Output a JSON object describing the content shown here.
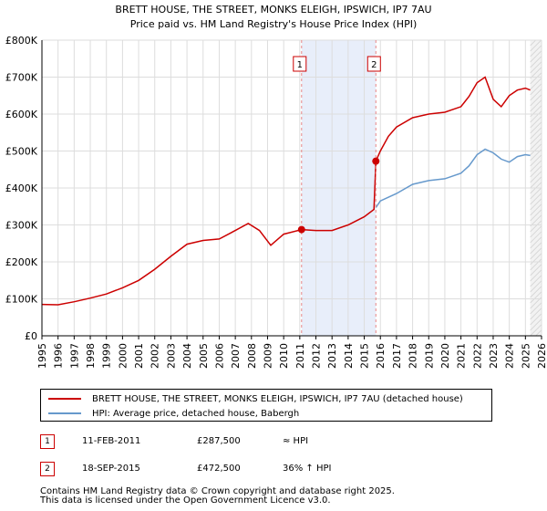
{
  "chart_data": {
    "type": "line",
    "title": "BRETT HOUSE, THE STREET, MONKS ELEIGH, IPSWICH, IP7 7AU",
    "subtitle": "Price paid vs. HM Land Registry's House Price Index (HPI)",
    "xlim": [
      1995,
      2026
    ],
    "ylim": [
      0,
      800000
    ],
    "x_ticks": [
      "1995",
      "1996",
      "1997",
      "1998",
      "1999",
      "2000",
      "2001",
      "2002",
      "2003",
      "2004",
      "2005",
      "2006",
      "2007",
      "2008",
      "2009",
      "2010",
      "2011",
      "2012",
      "2013",
      "2014",
      "2015",
      "2016",
      "2017",
      "2018",
      "2019",
      "2020",
      "2021",
      "2022",
      "2023",
      "2024",
      "2025",
      "2026"
    ],
    "y_ticks": [
      {
        "value": 0,
        "label": "£0"
      },
      {
        "value": 100000,
        "label": "£100K"
      },
      {
        "value": 200000,
        "label": "£200K"
      },
      {
        "value": 300000,
        "label": "£300K"
      },
      {
        "value": 400000,
        "label": "£400K"
      },
      {
        "value": 500000,
        "label": "£500K"
      },
      {
        "value": 600000,
        "label": "£600K"
      },
      {
        "value": 700000,
        "label": "£700K"
      },
      {
        "value": 800000,
        "label": "£800K"
      }
    ],
    "grid": true,
    "shaded_region": [
      2011.11,
      2015.72
    ],
    "series": [
      {
        "name": "BRETT HOUSE, THE STREET, MONKS ELEIGH, IPSWICH, IP7 7AU (detached house)",
        "color": "#cc0000",
        "x": [
          1995,
          1996,
          1997,
          1998,
          1999,
          2000,
          2001,
          2002,
          2003,
          2004,
          2005,
          2006,
          2007,
          2007.8,
          2008.5,
          2009.2,
          2010,
          2011.11,
          2012,
          2013,
          2014,
          2015,
          2015.6,
          2015.72,
          2016,
          2016.5,
          2017,
          2018,
          2019,
          2020,
          2021,
          2021.5,
          2022,
          2022.5,
          2023,
          2023.5,
          2024,
          2024.5,
          2025,
          2025.3
        ],
        "y": [
          85000,
          84000,
          92000,
          102000,
          113000,
          130000,
          150000,
          180000,
          215000,
          248000,
          258000,
          262000,
          285000,
          304000,
          285000,
          245000,
          275000,
          287500,
          285000,
          285000,
          300000,
          322000,
          342000,
          472500,
          500000,
          540000,
          565000,
          590000,
          600000,
          605000,
          620000,
          648000,
          685000,
          700000,
          640000,
          620000,
          650000,
          665000,
          670000,
          665000
        ]
      },
      {
        "name": "HPI: Average price, detached house, Babergh",
        "color": "#6699cc",
        "x": [
          2015.72,
          2016,
          2017,
          2018,
          2019,
          2020,
          2021,
          2021.5,
          2022,
          2022.5,
          2023,
          2023.5,
          2024,
          2024.5,
          2025,
          2025.3
        ],
        "y": [
          347000,
          365000,
          385000,
          410000,
          420000,
          425000,
          440000,
          460000,
          490000,
          505000,
          495000,
          478000,
          470000,
          485000,
          490000,
          488000
        ]
      }
    ],
    "sales": [
      {
        "id": "1",
        "date": "11-FEB-2011",
        "price": "£287,500",
        "hpi": "≈ HPI",
        "x": 2011.11,
        "y": 287500
      },
      {
        "id": "2",
        "date": "18-SEP-2015",
        "price": "£472,500",
        "hpi": "36% ↑ HPI",
        "x": 2015.72,
        "y": 472500
      }
    ],
    "legend": [
      {
        "label": "BRETT HOUSE, THE STREET, MONKS ELEIGH, IPSWICH, IP7 7AU (detached house)",
        "color": "#cc0000"
      },
      {
        "label": "HPI: Average price, detached house, Babergh",
        "color": "#6699cc"
      }
    ]
  },
  "footer": {
    "line1": "Contains HM Land Registry data © Crown copyright and database right 2025.",
    "line2": "This data is licensed under the Open Government Licence v3.0."
  }
}
